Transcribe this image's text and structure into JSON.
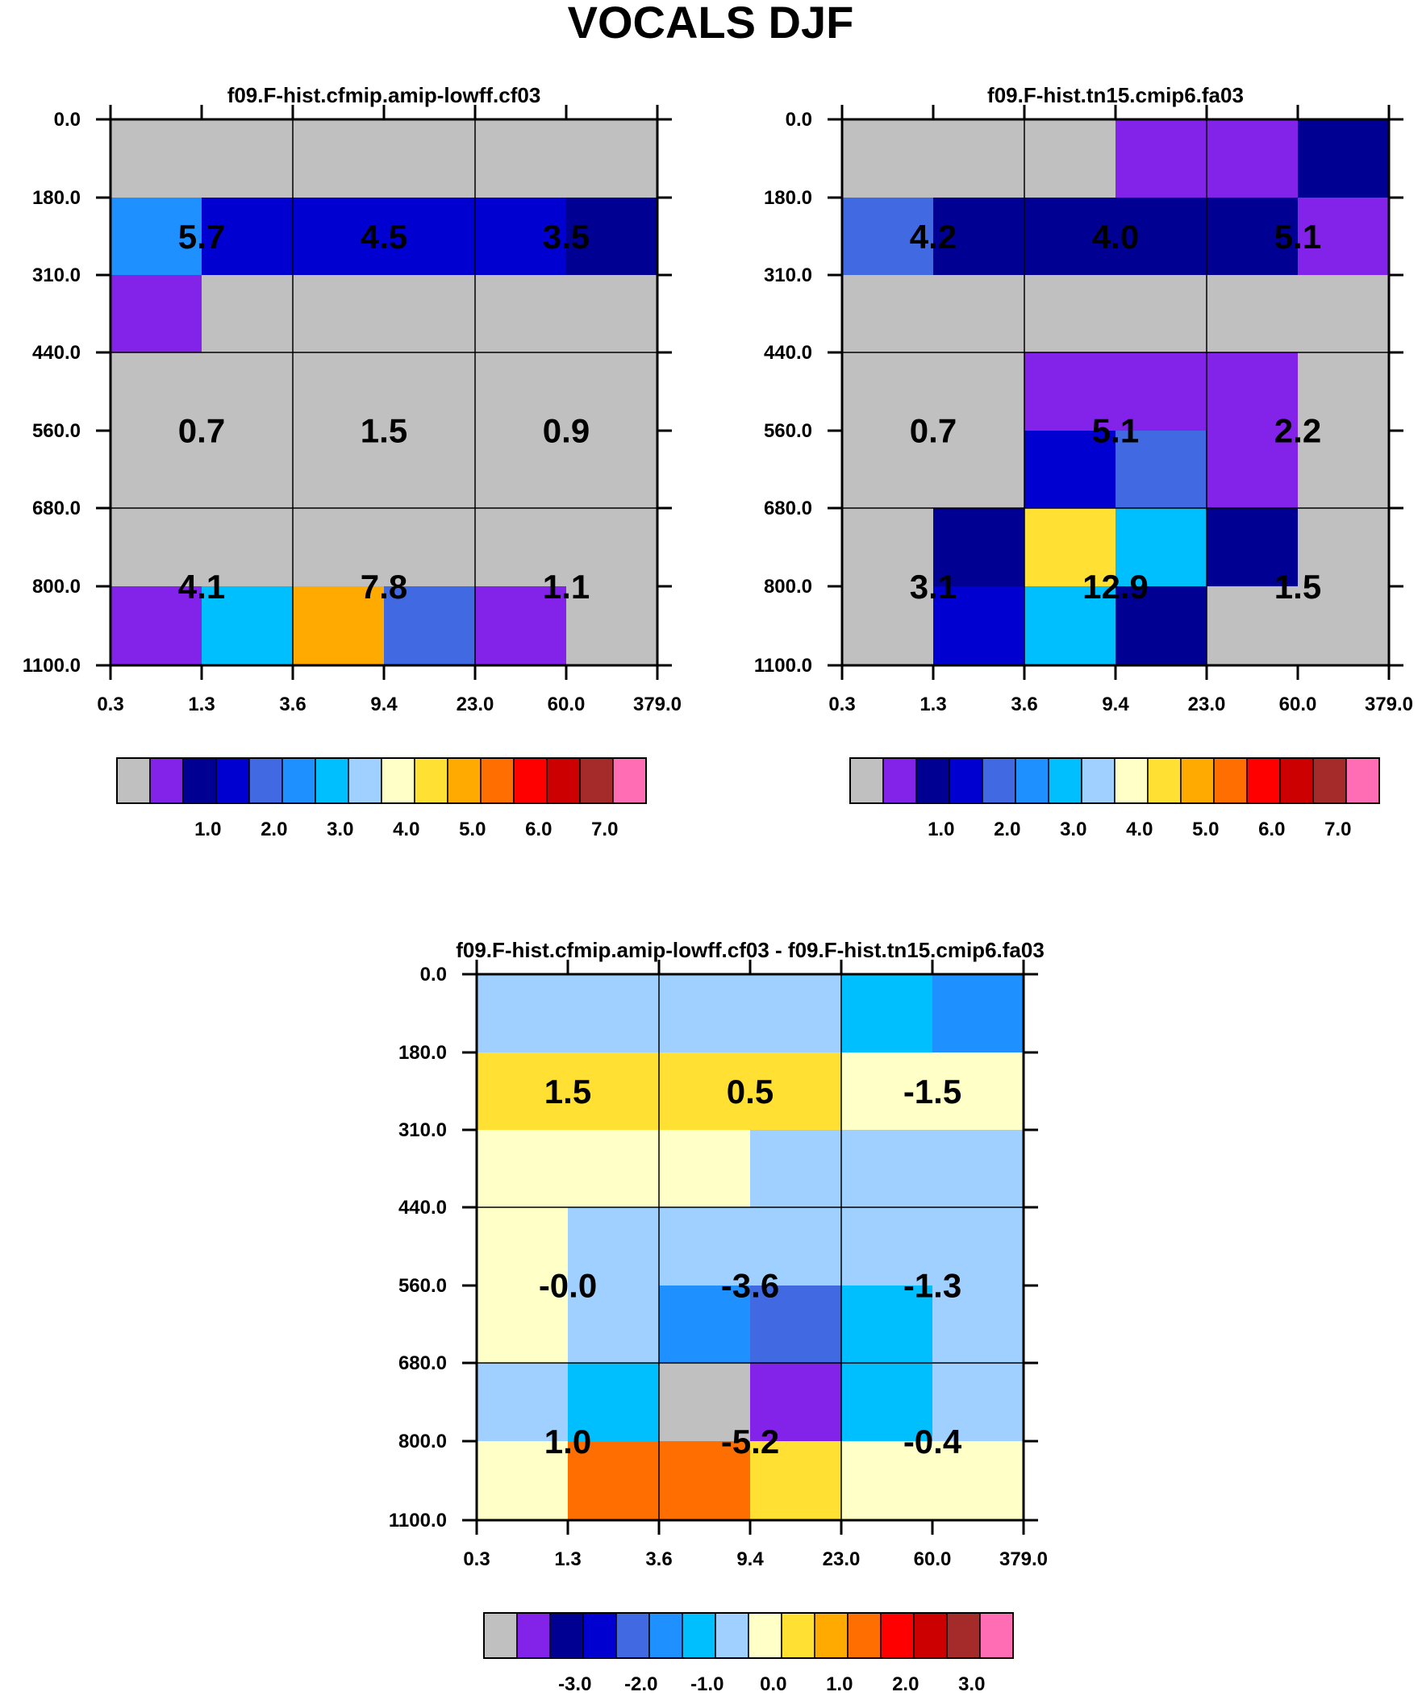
{
  "title": "VOCALS DJF",
  "palette": {
    "gray": "#c0c0c0",
    "purple": "#8322e8",
    "navy": "#000093",
    "blue": "#0000d0",
    "royalblue": "#4169e1",
    "dodger": "#1e90ff",
    "deepsky": "#00bfff",
    "lightblue": "#a0d0ff",
    "cream": "#ffffc8",
    "gold": "#ffe033",
    "orange": "#ffaa00",
    "darkorange": "#ff6e00",
    "red": "#ff0000",
    "crimson": "#cc0000",
    "brown": "#a52a2a",
    "pink": "#ff6eb4"
  },
  "chart_data": [
    {
      "type": "heatmap",
      "title": "f09.F-hist.cfmip.amip-lowff.cf03",
      "x_ticks": [
        "0.3",
        "1.3",
        "3.6",
        "9.4",
        "23.0",
        "60.0",
        "379.0"
      ],
      "y_ticks": [
        "0.0",
        "180.0",
        "310.0",
        "440.0",
        "560.0",
        "680.0",
        "800.0",
        "1100.0"
      ],
      "cells": [
        [
          "gray",
          "gray",
          "gray",
          "gray",
          "gray",
          "gray"
        ],
        [
          "dodger",
          "blue",
          "blue",
          "blue",
          "blue",
          "navy"
        ],
        [
          "purple",
          "gray",
          "gray",
          "gray",
          "gray",
          "gray"
        ],
        [
          "gray",
          "gray",
          "gray",
          "gray",
          "gray",
          "gray"
        ],
        [
          "gray",
          "gray",
          "gray",
          "gray",
          "gray",
          "gray"
        ],
        [
          "gray",
          "gray",
          "gray",
          "gray",
          "gray",
          "gray"
        ],
        [
          "purple",
          "deepsky",
          "orange",
          "royalblue",
          "purple",
          "gray"
        ]
      ],
      "box_values": [
        [
          "5.7",
          "4.5",
          "3.5"
        ],
        [
          "0.7",
          "1.5",
          "0.9"
        ],
        [
          "4.1",
          "7.8",
          "1.1"
        ]
      ],
      "colorbar": {
        "colors": [
          "gray",
          "purple",
          "navy",
          "blue",
          "royalblue",
          "dodger",
          "deepsky",
          "lightblue",
          "cream",
          "gold",
          "orange",
          "darkorange",
          "red",
          "crimson",
          "brown",
          "pink"
        ],
        "labels": [
          "1.0",
          "2.0",
          "3.0",
          "4.0",
          "5.0",
          "6.0",
          "7.0"
        ]
      }
    },
    {
      "type": "heatmap",
      "title": "f09.F-hist.tn15.cmip6.fa03",
      "x_ticks": [
        "0.3",
        "1.3",
        "3.6",
        "9.4",
        "23.0",
        "60.0",
        "379.0"
      ],
      "y_ticks": [
        "0.0",
        "180.0",
        "310.0",
        "440.0",
        "560.0",
        "680.0",
        "800.0",
        "1100.0"
      ],
      "cells": [
        [
          "gray",
          "gray",
          "gray",
          "purple",
          "purple",
          "navy"
        ],
        [
          "royalblue",
          "navy",
          "navy",
          "navy",
          "navy",
          "purple"
        ],
        [
          "gray",
          "gray",
          "gray",
          "gray",
          "gray",
          "gray"
        ],
        [
          "gray",
          "gray",
          "purple",
          "purple",
          "purple",
          "gray"
        ],
        [
          "gray",
          "gray",
          "blue",
          "royalblue",
          "purple",
          "gray"
        ],
        [
          "gray",
          "navy",
          "gold",
          "deepsky",
          "navy",
          "gray"
        ],
        [
          "gray",
          "blue",
          "deepsky",
          "navy",
          "gray",
          "gray"
        ]
      ],
      "box_values": [
        [
          "4.2",
          "4.0",
          "5.1"
        ],
        [
          "0.7",
          "5.1",
          "2.2"
        ],
        [
          "3.1",
          "12.9",
          "1.5"
        ]
      ],
      "colorbar": {
        "colors": [
          "gray",
          "purple",
          "navy",
          "blue",
          "royalblue",
          "dodger",
          "deepsky",
          "lightblue",
          "cream",
          "gold",
          "orange",
          "darkorange",
          "red",
          "crimson",
          "brown",
          "pink"
        ],
        "labels": [
          "1.0",
          "2.0",
          "3.0",
          "4.0",
          "5.0",
          "6.0",
          "7.0"
        ]
      }
    },
    {
      "type": "heatmap",
      "title": "f09.F-hist.cfmip.amip-lowff.cf03 - f09.F-hist.tn15.cmip6.fa03",
      "x_ticks": [
        "0.3",
        "1.3",
        "3.6",
        "9.4",
        "23.0",
        "60.0",
        "379.0"
      ],
      "y_ticks": [
        "0.0",
        "180.0",
        "310.0",
        "440.0",
        "560.0",
        "680.0",
        "800.0",
        "1100.0"
      ],
      "cells": [
        [
          "lightblue",
          "lightblue",
          "lightblue",
          "lightblue",
          "deepsky",
          "dodger"
        ],
        [
          "gold",
          "gold",
          "gold",
          "gold",
          "cream",
          "cream"
        ],
        [
          "cream",
          "cream",
          "cream",
          "lightblue",
          "lightblue",
          "lightblue"
        ],
        [
          "cream",
          "lightblue",
          "lightblue",
          "lightblue",
          "lightblue",
          "lightblue"
        ],
        [
          "cream",
          "lightblue",
          "dodger",
          "royalblue",
          "deepsky",
          "lightblue"
        ],
        [
          "lightblue",
          "deepsky",
          "gray",
          "purple",
          "deepsky",
          "lightblue"
        ],
        [
          "cream",
          "darkorange",
          "darkorange",
          "gold",
          "cream",
          "cream"
        ]
      ],
      "box_values": [
        [
          "1.5",
          "0.5",
          "-1.5"
        ],
        [
          "-0.0",
          "-3.6",
          "-1.3"
        ],
        [
          "1.0",
          "-5.2",
          "-0.4"
        ]
      ],
      "colorbar": {
        "colors": [
          "gray",
          "purple",
          "navy",
          "blue",
          "royalblue",
          "dodger",
          "deepsky",
          "lightblue",
          "cream",
          "gold",
          "orange",
          "darkorange",
          "red",
          "crimson",
          "brown",
          "pink"
        ],
        "labels": [
          "-3.0",
          "-2.0",
          "-1.0",
          "0.0",
          "1.0",
          "2.0",
          "3.0"
        ]
      }
    }
  ]
}
